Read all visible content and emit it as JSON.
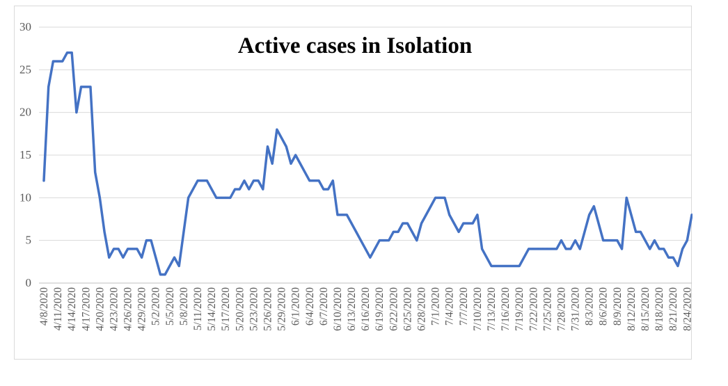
{
  "chart_data": {
    "type": "line",
    "title": "Active cases in Isolation",
    "xlabel": "",
    "ylabel": "",
    "ylim": [
      0,
      30
    ],
    "yticks": [
      0,
      5,
      10,
      15,
      20,
      25,
      30
    ],
    "grid": true,
    "legend": "none",
    "line_color": "#4472c4",
    "x_start": "4/8/2020",
    "x_tick_labels": [
      "4/8/2020",
      "4/11/2020",
      "4/14/2020",
      "4/17/2020",
      "4/20/2020",
      "4/23/2020",
      "4/26/2020",
      "4/29/2020",
      "5/2/2020",
      "5/5/2020",
      "5/8/2020",
      "5/11/2020",
      "5/14/2020",
      "5/17/2020",
      "5/20/2020",
      "5/23/2020",
      "5/26/2020",
      "5/29/2020",
      "6/1/2020",
      "6/4/2020",
      "6/7/2020",
      "6/10/2020",
      "6/13/2020",
      "6/16/2020",
      "6/19/2020",
      "6/22/2020",
      "6/25/2020",
      "6/28/2020",
      "7/1/2020",
      "7/4/2020",
      "7/7/2020",
      "7/10/2020",
      "7/13/2020",
      "7/16/2020",
      "7/19/2020",
      "7/22/2020",
      "7/25/2020",
      "7/28/2020",
      "7/31/2020",
      "8/3/2020",
      "8/6/2020",
      "8/9/2020",
      "8/12/2020",
      "8/15/2020",
      "8/18/2020",
      "8/21/2020",
      "8/24/2020"
    ],
    "series": [
      {
        "values": [
          12,
          23,
          26,
          26,
          26,
          27,
          27,
          20,
          23,
          23,
          23,
          13,
          10,
          6,
          3,
          4,
          4,
          3,
          4,
          4,
          4,
          3,
          5,
          5,
          3,
          1,
          1,
          2,
          3,
          2,
          6,
          10,
          11,
          12,
          12,
          12,
          11,
          10,
          10,
          10,
          10,
          11,
          11,
          12,
          11,
          12,
          12,
          11,
          16,
          14,
          18,
          17,
          16,
          14,
          15,
          14,
          13,
          12,
          12,
          12,
          11,
          11,
          12,
          8,
          8,
          8,
          7,
          6,
          5,
          4,
          3,
          4,
          5,
          5,
          5,
          6,
          6,
          7,
          7,
          6,
          5,
          7,
          8,
          9,
          10,
          10,
          10,
          8,
          7,
          6,
          7,
          7,
          7,
          8,
          4,
          3,
          2,
          2,
          2,
          2,
          2,
          2,
          2,
          3,
          4,
          4,
          4,
          4,
          4,
          4,
          4,
          5,
          4,
          4,
          5,
          4,
          6,
          8,
          9,
          7,
          5,
          5,
          5,
          5,
          4,
          10,
          8,
          6,
          6,
          5,
          4,
          5,
          4,
          4,
          3,
          3,
          2,
          4,
          5,
          8
        ]
      }
    ]
  }
}
